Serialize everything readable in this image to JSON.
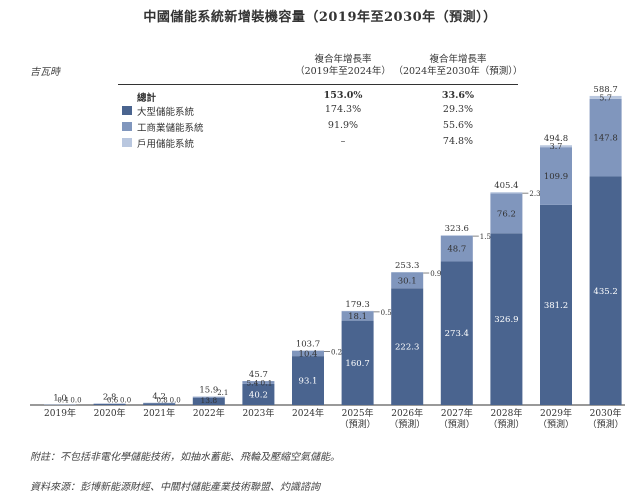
{
  "title": "中國儲能系統新增裝機容量（2019年至2030年（預測））",
  "unit": "吉瓦時",
  "table": {
    "col1_line1": "複合年增長率",
    "col1_line2": "（2019年至2024年）",
    "col2_line1": "複合年增長率",
    "col2_line2": "（2024年至2030年（預測））",
    "rows": [
      {
        "label": "總計",
        "v1": "153.0%",
        "v2": "33.6%",
        "color": ""
      },
      {
        "label": "大型儲能系統",
        "v1": "174.3%",
        "v2": "29.3%",
        "color": "#4a648f"
      },
      {
        "label": "工商業儲能系統",
        "v1": "91.9%",
        "v2": "55.6%",
        "color": "#8096bd"
      },
      {
        "label": "戶用儲能系統",
        "v1": "–",
        "v2": "74.8%",
        "color": "#b9c7df"
      }
    ]
  },
  "footnote": "附註：不包括非電化學儲能技術，如抽水蓄能、飛輪及壓縮空氣儲能。",
  "source": "資料來源：彭博新能源財經、中關村儲能產業技術聯盟、灼識諮詢",
  "chart_data": {
    "type": "bar",
    "stacked": true,
    "categories": [
      "2019年",
      "2020年",
      "2021年",
      "2022年",
      "2023年",
      "2024年",
      "2025年\n（預測）",
      "2026年\n（預測）",
      "2027年\n（預測）",
      "2028年\n（預測）",
      "2029年\n（預測）",
      "2030年\n（預測）"
    ],
    "series": [
      {
        "name": "大型儲能系統",
        "color": "#4a648f",
        "values": [
          0.6,
          2.2,
          3.4,
          13.8,
          40.2,
          93.1,
          160.7,
          222.3,
          273.4,
          326.9,
          381.2,
          435.2
        ]
      },
      {
        "name": "工商業儲能系統",
        "color": "#8096bd",
        "values": [
          0.4,
          0.6,
          0.8,
          2.1,
          5.4,
          10.4,
          18.1,
          30.1,
          48.7,
          76.2,
          109.9,
          147.8
        ]
      },
      {
        "name": "戶用儲能系統",
        "color": "#b9c7df",
        "values": [
          0.0,
          0.0,
          0.0,
          0.0,
          0.1,
          0.2,
          0.5,
          0.9,
          1.5,
          2.3,
          3.7,
          5.7
        ]
      }
    ],
    "totals": [
      "1.0",
      "2.8",
      "4.2",
      "15.9",
      "45.7",
      "103.7",
      "179.3",
      "253.3",
      "323.6",
      "405.4",
      "494.8",
      "588.7"
    ],
    "labels": {
      "large": [
        "0.6",
        "2.2",
        "3.4",
        "13.8",
        "40.2",
        "93.1",
        "160.7",
        "222.3",
        "273.4",
        "326.9",
        "381.2",
        "435.2"
      ],
      "ci": [
        "0.4",
        "0.6",
        "0.8",
        "2.1",
        "5.4",
        "10.4",
        "18.1",
        "30.1",
        "48.7",
        "76.2",
        "109.9",
        "147.8"
      ],
      "res": [
        "0.0",
        "0.0",
        "0.0",
        "0.0",
        "0.1",
        "0.2",
        "0.5",
        "0.9",
        "1.5",
        "2.3",
        "3.7",
        "5.7"
      ]
    }
  }
}
